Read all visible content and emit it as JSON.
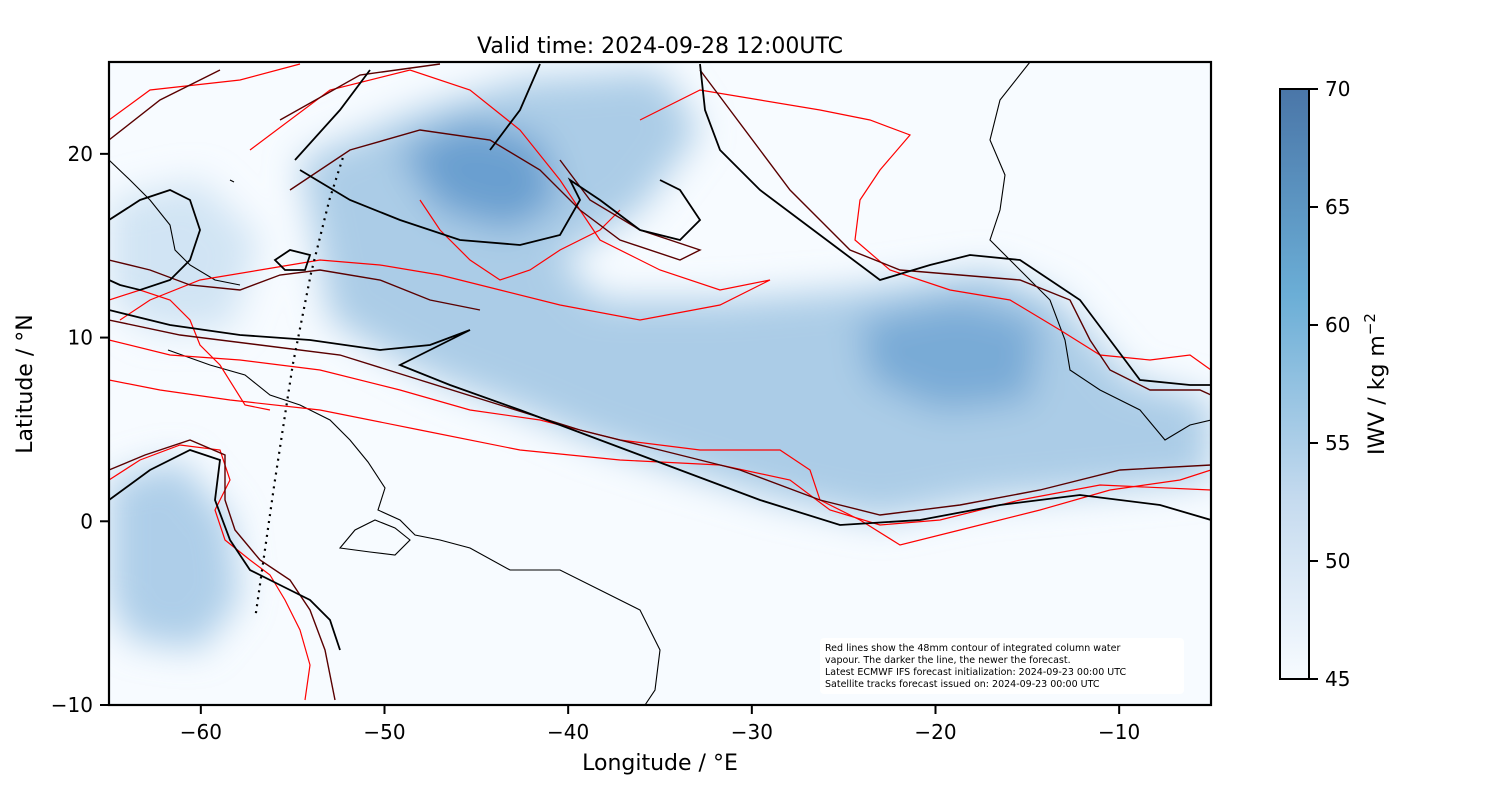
{
  "title": "Valid time: 2024-09-28 12:00UTC",
  "x_axis": {
    "label": "Longitude / °E",
    "range": [
      -65,
      -5
    ],
    "ticks": [
      -60,
      -50,
      -40,
      -30,
      -20,
      -10
    ],
    "tick_labels": [
      "−60",
      "−50",
      "−40",
      "−30",
      "−20",
      "−10"
    ]
  },
  "y_axis": {
    "label": "Latitude / °N",
    "range": [
      -10,
      25
    ],
    "ticks": [
      -10,
      0,
      10,
      20
    ],
    "tick_labels": [
      "−10",
      "0",
      "10",
      "20"
    ]
  },
  "colorbar": {
    "label": "IWV / kg m",
    "label_superscript": "−2",
    "range": [
      45,
      70
    ],
    "ticks": [
      45,
      50,
      55,
      60,
      65,
      70
    ],
    "tick_labels": [
      "45",
      "50",
      "55",
      "60",
      "65",
      "70"
    ],
    "colormap": [
      "#f7fbff",
      "#c6dbef",
      "#6baed6",
      "#4a76a8"
    ]
  },
  "colors": {
    "newest_contour": "#000000",
    "mid_contour": "#5a0000",
    "oldest_contour": "#ff0000",
    "coastline": "#000000",
    "satellite_track": "#000000"
  },
  "satellite_track": {
    "points": [
      [
        -57.0,
        -5.0
      ],
      [
        -56.0,
        2.0
      ],
      [
        -55.0,
        8.5
      ],
      [
        -54.0,
        13.5
      ],
      [
        -53.0,
        17.5
      ],
      [
        -52.2,
        20.0
      ]
    ]
  },
  "annotation": {
    "lines": [
      "Red lines show the 48mm contour of integrated column water",
      "vapour. The darker the line, the newer the forecast.",
      "Latest ECMWF IFS forecast initialization: 2024-09-23 00:00 UTC",
      "Satellite tracks forecast issued on: 2024-09-23 00:00 UTC"
    ]
  }
}
